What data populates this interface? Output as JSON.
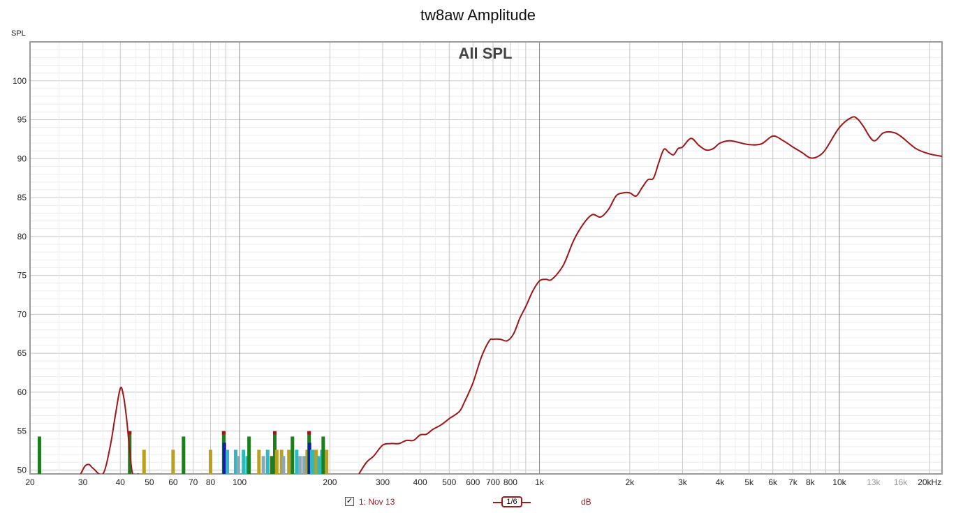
{
  "chart_data": {
    "type": "line",
    "title": "tw8aw Amplitude",
    "subtitle": "All SPL",
    "ylabel": "SPL",
    "x_scale": "log",
    "xlim": [
      20,
      22000
    ],
    "ylim": [
      49.5,
      105
    ],
    "y_ticks": [
      50,
      55,
      60,
      65,
      70,
      75,
      80,
      85,
      90,
      95,
      100
    ],
    "x_ticks": [
      {
        "value": 20,
        "label": "20"
      },
      {
        "value": 30,
        "label": "30"
      },
      {
        "value": 40,
        "label": "40"
      },
      {
        "value": 50,
        "label": "50"
      },
      {
        "value": 60,
        "label": "60"
      },
      {
        "value": 70,
        "label": "70"
      },
      {
        "value": 80,
        "label": "80"
      },
      {
        "value": 100,
        "label": "100"
      },
      {
        "value": 200,
        "label": "200"
      },
      {
        "value": 300,
        "label": "300"
      },
      {
        "value": 400,
        "label": "400"
      },
      {
        "value": 500,
        "label": "500"
      },
      {
        "value": 600,
        "label": "600"
      },
      {
        "value": 700,
        "label": "700"
      },
      {
        "value": 800,
        "label": "800"
      },
      {
        "value": 1000,
        "label": "1k"
      },
      {
        "value": 2000,
        "label": "2k"
      },
      {
        "value": 3000,
        "label": "3k"
      },
      {
        "value": 4000,
        "label": "4k"
      },
      {
        "value": 5000,
        "label": "5k"
      },
      {
        "value": 6000,
        "label": "6k"
      },
      {
        "value": 7000,
        "label": "7k"
      },
      {
        "value": 8000,
        "label": "8k"
      },
      {
        "value": 10000,
        "label": "10k"
      },
      {
        "value": 13000,
        "label": "13k",
        "muted": true
      },
      {
        "value": 16000,
        "label": "16k",
        "muted": true
      },
      {
        "value": 20000,
        "label": "20kHz"
      }
    ],
    "grid": true,
    "series": [
      {
        "name": "1: Nov 13",
        "color": "#a01515",
        "x": [
          29.5,
          30.5,
          31.5,
          32.5,
          35,
          37,
          38.5,
          40,
          41,
          42,
          43,
          44,
          46,
          250,
          265,
          280,
          300,
          320,
          340,
          360,
          380,
          400,
          420,
          440,
          470,
          500,
          540,
          560,
          600,
          640,
          680,
          700,
          740,
          780,
          820,
          860,
          900,
          950,
          1000,
          1050,
          1100,
          1200,
          1300,
          1400,
          1500,
          1600,
          1700,
          1800,
          1900,
          2000,
          2100,
          2200,
          2300,
          2400,
          2500,
          2600,
          2700,
          2800,
          2900,
          3000,
          3200,
          3400,
          3600,
          3800,
          4000,
          4300,
          4600,
          5000,
          5500,
          6000,
          6500,
          7000,
          7500,
          8000,
          8500,
          9000,
          10000,
          11000,
          11500,
          12000,
          13000,
          14000,
          15000,
          16000,
          18000,
          20000,
          22000
        ],
        "y": [
          49.5,
          50.5,
          50.7,
          50.2,
          49.5,
          53,
          57,
          60.5,
          59.5,
          56.5,
          52.5,
          49.5,
          49.5,
          49.5,
          51,
          51.8,
          53.2,
          53.4,
          53.4,
          53.8,
          53.8,
          54.5,
          54.6,
          55.2,
          55.8,
          56.6,
          57.5,
          58.6,
          61.2,
          64.5,
          66.6,
          66.8,
          66.8,
          66.6,
          67.5,
          69.5,
          71,
          73,
          74.3,
          74.5,
          74.5,
          76.3,
          79.5,
          81.6,
          82.8,
          82.5,
          83.5,
          85.2,
          85.6,
          85.6,
          85.2,
          86.3,
          87.3,
          87.5,
          89.5,
          91.2,
          90.8,
          90.5,
          91.3,
          91.5,
          92.6,
          91.7,
          91.1,
          91.3,
          92,
          92.3,
          92.1,
          91.8,
          91.9,
          92.9,
          92.3,
          91.5,
          90.8,
          90.1,
          90.3,
          91.2,
          94,
          95.3,
          95.1,
          94.2,
          92.3,
          93.3,
          93.4,
          92.9,
          91.3,
          90.6,
          90.3
        ]
      }
    ],
    "bars": [
      {
        "x": 21.5,
        "top": 54.3,
        "color": "#1e7d1e",
        "cap": null
      },
      {
        "x": 43,
        "top": 55,
        "color": "#1e7d1e",
        "cap": "#a01515"
      },
      {
        "x": 48,
        "top": 52.6,
        "color": "#b9a020",
        "cap": null
      },
      {
        "x": 60,
        "top": 52.6,
        "color": "#b9a020",
        "cap": null
      },
      {
        "x": 65,
        "top": 54.3,
        "color": "#1e7d1e",
        "cap": null
      },
      {
        "x": 80,
        "top": 52.6,
        "color": "#b9a020",
        "cap": null
      },
      {
        "x": 88.5,
        "top": 55,
        "color": "#1e7d1e",
        "cap": "#a01515"
      },
      {
        "x": 88.9,
        "top": 53.5,
        "color": "#1a1ab0",
        "cap": null
      },
      {
        "x": 91,
        "top": 52.6,
        "color": "#2fb8c0",
        "cap": null
      },
      {
        "x": 97,
        "top": 52.6,
        "color": "#2fb8c0",
        "cap": null
      },
      {
        "x": 99,
        "top": 51.8,
        "color": "#8aa8b8",
        "cap": null
      },
      {
        "x": 103,
        "top": 52.6,
        "color": "#2fb8c0",
        "cap": null
      },
      {
        "x": 106,
        "top": 51.8,
        "color": "#2fb8c0",
        "cap": null
      },
      {
        "x": 107.5,
        "top": 54.3,
        "color": "#1e7d1e",
        "cap": null
      },
      {
        "x": 116,
        "top": 52.6,
        "color": "#b9a020",
        "cap": null
      },
      {
        "x": 120,
        "top": 51.8,
        "color": "#8aa8b8",
        "cap": null
      },
      {
        "x": 124,
        "top": 52.6,
        "color": "#2fb8c0",
        "cap": null
      },
      {
        "x": 128,
        "top": 51.8,
        "color": "#1e7d1e",
        "cap": null
      },
      {
        "x": 131,
        "top": 55,
        "color": "#1e7d1e",
        "cap": "#a01515"
      },
      {
        "x": 133,
        "top": 52.6,
        "color": "#b9a020",
        "cap": null
      },
      {
        "x": 138,
        "top": 52.6,
        "color": "#b9a020",
        "cap": null
      },
      {
        "x": 140,
        "top": 51.8,
        "color": "#8aa8b8",
        "cap": null
      },
      {
        "x": 146,
        "top": 52.6,
        "color": "#b9a020",
        "cap": null
      },
      {
        "x": 150,
        "top": 54.3,
        "color": "#1e7d1e",
        "cap": null
      },
      {
        "x": 155,
        "top": 52.6,
        "color": "#2fb8c0",
        "cap": null
      },
      {
        "x": 159,
        "top": 51.8,
        "color": "#8aa8b8",
        "cap": null
      },
      {
        "x": 164,
        "top": 51.8,
        "color": "#8aa8b8",
        "cap": null
      },
      {
        "x": 168,
        "top": 52.6,
        "color": "#b9a020",
        "cap": null
      },
      {
        "x": 170.5,
        "top": 55,
        "color": "#1e7d1e",
        "cap": "#a01515"
      },
      {
        "x": 171,
        "top": 53.5,
        "color": "#1a1ab0",
        "cap": null
      },
      {
        "x": 174,
        "top": 52.6,
        "color": "#2fb8c0",
        "cap": null
      },
      {
        "x": 177,
        "top": 52.6,
        "color": "#2fb8c0",
        "cap": null
      },
      {
        "x": 180,
        "top": 52.6,
        "color": "#b9a020",
        "cap": null
      },
      {
        "x": 184,
        "top": 51.8,
        "color": "#2fb8c0",
        "cap": null
      },
      {
        "x": 188,
        "top": 52.6,
        "color": "#2fb8c0",
        "cap": null
      },
      {
        "x": 190,
        "top": 54.3,
        "color": "#1e7d1e",
        "cap": null
      },
      {
        "x": 195,
        "top": 52.6,
        "color": "#b9a020",
        "cap": null
      }
    ]
  },
  "legend": {
    "series_label": "1: Nov 13",
    "checked_mark": "✓",
    "smoothing_label": "1/6",
    "unit_label": "dB"
  }
}
